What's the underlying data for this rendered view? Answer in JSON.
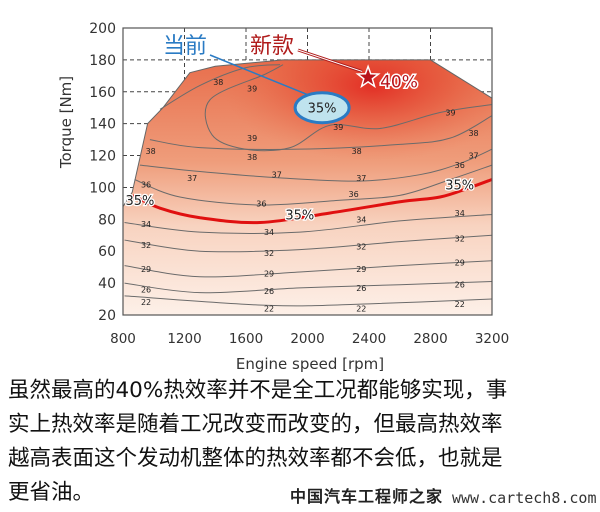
{
  "chart_data": {
    "type": "contour",
    "xlabel": "Engine speed [rpm]",
    "ylabel": "Torque [Nm]",
    "xlim": [
      800,
      3200
    ],
    "ylim": [
      20,
      200
    ],
    "xticks": [
      "800",
      "1200",
      "1600",
      "2000",
      "2400",
      "2800",
      "3200"
    ],
    "yticks": [
      "20",
      "40",
      "60",
      "80",
      "100",
      "120",
      "140",
      "160",
      "180",
      "200"
    ],
    "grid": "dashed, visible outside operating region",
    "full_load_envelope": [
      [
        800,
        20
      ],
      [
        800,
        88
      ],
      [
        860,
        97
      ],
      [
        960,
        140
      ],
      [
        1060,
        150
      ],
      [
        1235,
        172
      ],
      [
        1400,
        176
      ],
      [
        1840,
        180
      ],
      [
        2800,
        180
      ],
      [
        3200,
        156
      ],
      [
        3200,
        20
      ]
    ],
    "contours": [
      {
        "level": 22,
        "points": [
          [
            810,
            32
          ],
          [
            1750,
            26
          ],
          [
            2400,
            27
          ],
          [
            3200,
            30
          ]
        ]
      },
      {
        "level": 26,
        "points": [
          [
            810,
            40
          ],
          [
            1300,
            34
          ],
          [
            1950,
            37
          ],
          [
            2600,
            39
          ],
          [
            3200,
            41
          ]
        ]
      },
      {
        "level": 29,
        "points": [
          [
            810,
            51
          ],
          [
            1300,
            44
          ],
          [
            1950,
            47
          ],
          [
            2600,
            51
          ],
          [
            3200,
            54
          ]
        ]
      },
      {
        "level": 32,
        "points": [
          [
            810,
            67
          ],
          [
            1300,
            60
          ],
          [
            1950,
            61
          ],
          [
            2600,
            66
          ],
          [
            3200,
            70
          ]
        ]
      },
      {
        "level": 34,
        "points": [
          [
            810,
            78
          ],
          [
            1300,
            72
          ],
          [
            1950,
            72
          ],
          [
            2600,
            79
          ],
          [
            3200,
            83
          ]
        ]
      },
      {
        "level": 35,
        "highlight": true,
        "points": [
          [
            865,
            95
          ],
          [
            1041,
            87
          ],
          [
            1301,
            81
          ],
          [
            1691,
            78
          ],
          [
            2147,
            84
          ],
          [
            2602,
            91
          ],
          [
            2862,
            94
          ],
          [
            3058,
            100
          ],
          [
            3200,
            105
          ]
        ]
      },
      {
        "level": 36,
        "points": [
          [
            875,
            105
          ],
          [
            1170,
            94
          ],
          [
            1690,
            89
          ],
          [
            2210,
            92
          ],
          [
            2600,
            95
          ],
          [
            2930,
            105
          ],
          [
            3200,
            114
          ]
        ]
      },
      {
        "level": 37,
        "points": [
          [
            910,
            114
          ],
          [
            1300,
            110
          ],
          [
            1820,
            106
          ],
          [
            2340,
            104
          ],
          [
            2730,
            108
          ],
          [
            2990,
            115
          ],
          [
            3200,
            124
          ]
        ]
      },
      {
        "level": 38,
        "points": [
          [
            975,
            130
          ],
          [
            1300,
            125
          ],
          [
            1950,
            124
          ],
          [
            2600,
            127
          ],
          [
            2930,
            131
          ],
          [
            3200,
            145
          ]
        ]
      },
      {
        "level": 38,
        "points": [
          [
            1041,
            149
          ],
          [
            1301,
            164
          ],
          [
            1594,
            175
          ],
          [
            1821,
            177
          ]
        ]
      },
      {
        "level": 39,
        "points": [
          [
            1841,
            177
          ],
          [
            1724,
            171
          ],
          [
            1366,
            155
          ],
          [
            1379,
            133
          ],
          [
            1594,
            124
          ],
          [
            1887,
            125
          ],
          [
            2147,
            139
          ],
          [
            2472,
            137
          ],
          [
            2862,
            147
          ],
          [
            3200,
            152
          ]
        ]
      }
    ],
    "contour_labels": [
      {
        "text": "22",
        "x": 950,
        "y": 28
      },
      {
        "text": "22",
        "x": 1750,
        "y": 24
      },
      {
        "text": "22",
        "x": 2350,
        "y": 24
      },
      {
        "text": "22",
        "x": 2990,
        "y": 27
      },
      {
        "text": "26",
        "x": 950,
        "y": 36
      },
      {
        "text": "26",
        "x": 1750,
        "y": 35
      },
      {
        "text": "26",
        "x": 2350,
        "y": 37
      },
      {
        "text": "26",
        "x": 2990,
        "y": 39
      },
      {
        "text": "29",
        "x": 950,
        "y": 49
      },
      {
        "text": "29",
        "x": 1750,
        "y": 46
      },
      {
        "text": "29",
        "x": 2350,
        "y": 49
      },
      {
        "text": "29",
        "x": 2990,
        "y": 53
      },
      {
        "text": "32",
        "x": 950,
        "y": 64
      },
      {
        "text": "32",
        "x": 1750,
        "y": 59
      },
      {
        "text": "32",
        "x": 2350,
        "y": 63
      },
      {
        "text": "32",
        "x": 2990,
        "y": 68
      },
      {
        "text": "34",
        "x": 950,
        "y": 77
      },
      {
        "text": "34",
        "x": 1750,
        "y": 72
      },
      {
        "text": "34",
        "x": 2350,
        "y": 80
      },
      {
        "text": "34",
        "x": 2990,
        "y": 84
      },
      {
        "text": "36",
        "x": 950,
        "y": 102
      },
      {
        "text": "36",
        "x": 1700,
        "y": 90
      },
      {
        "text": "36",
        "x": 2300,
        "y": 96
      },
      {
        "text": "36",
        "x": 2990,
        "y": 114
      },
      {
        "text": "37",
        "x": 1250,
        "y": 106
      },
      {
        "text": "37",
        "x": 1800,
        "y": 108
      },
      {
        "text": "37",
        "x": 2350,
        "y": 106
      },
      {
        "text": "37",
        "x": 3080,
        "y": 120
      },
      {
        "text": "38",
        "x": 980,
        "y": 123
      },
      {
        "text": "38",
        "x": 1640,
        "y": 119
      },
      {
        "text": "38",
        "x": 2320,
        "y": 123
      },
      {
        "text": "38",
        "x": 3080,
        "y": 134
      },
      {
        "text": "38",
        "x": 1420,
        "y": 166
      },
      {
        "text": "39",
        "x": 1640,
        "y": 162
      },
      {
        "text": "39",
        "x": 1640,
        "y": 131
      },
      {
        "text": "39",
        "x": 2200,
        "y": 138
      },
      {
        "text": "39",
        "x": 2930,
        "y": 147
      }
    ],
    "highlight_labels": [
      {
        "text": "35%",
        "x": 910,
        "y": 92
      },
      {
        "text": "35%",
        "x": 1950,
        "y": 83
      },
      {
        "text": "35%",
        "x": 2990,
        "y": 102
      }
    ],
    "annotations": {
      "current": {
        "label": "当前",
        "value": "35%",
        "x": 2095,
        "y": 150,
        "color": "#2a7bc4"
      },
      "new": {
        "label": "新款",
        "value": "40%",
        "x": 2394,
        "y": 169,
        "color": "#b01c1c"
      }
    },
    "colors": {
      "low": "#fbe6da",
      "mid": "#ec9572",
      "high": "#e0382a",
      "highlight_line": "#e01010"
    }
  },
  "caption": {
    "lines": [
      "虽然最高的40%热效率并不是全工况都能够实现，事",
      "实上热效率是随着工况改变而改变的，但最高热效率",
      "越高表面这个发动机整体的热效率都不会低，也就是",
      "更省油。"
    ]
  },
  "watermark": {
    "name": "中国汽车工程师之家",
    "url": "www.cartech8.com"
  }
}
